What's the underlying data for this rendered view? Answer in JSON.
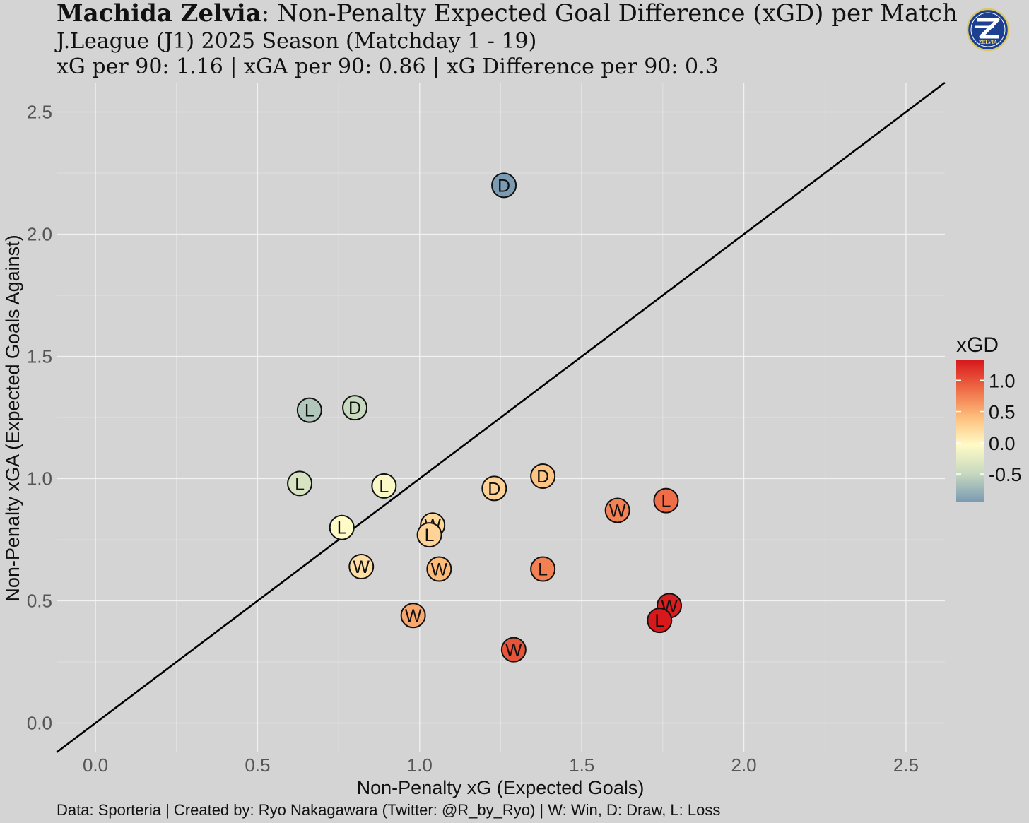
{
  "chart_data": {
    "type": "scatter",
    "title_team": "Machida Zelvia",
    "title_rest": ": Non-Penalty Expected Goal Difference (xGD) per Match",
    "subtitle": "J.League (J1) 2025 Season (Matchday 1 - 19)",
    "subtitle2": "xG per 90: 1.16 | xGA per 90: 0.86 | xG Difference per 90: 0.3",
    "xlabel": "Non-Penalty xG (Expected Goals)",
    "ylabel": "Non-Penalty xGA (Expected Goals Against)",
    "caption": "Data: Sporteria | Created by: Ryo Nakagawara (Twitter: @R_by_Ryo) | W: Win, D: Draw, L: Loss",
    "xlim": [
      -0.12,
      2.62
    ],
    "ylim": [
      -0.12,
      2.62
    ],
    "x_ticks": [
      "0.0",
      "0.5",
      "1.0",
      "1.5",
      "2.0",
      "2.5"
    ],
    "y_ticks": [
      "0.0",
      "0.5",
      "1.0",
      "1.5",
      "2.0",
      "2.5"
    ],
    "x_tick_values": [
      0,
      0.5,
      1.0,
      1.5,
      2.0,
      2.5
    ],
    "y_tick_values": [
      0,
      0.5,
      1.0,
      1.5,
      2.0,
      2.5
    ],
    "reference_line": "y = x",
    "grid": true,
    "legend": {
      "title": "xGD",
      "position": "right",
      "labels": [
        "1.0",
        "0.5",
        "0.0",
        "-0.5"
      ],
      "values": [
        1.0,
        0.5,
        0.0,
        -0.5
      ],
      "range": [
        -0.94,
        1.32
      ],
      "colors": [
        "#7b9bb3",
        "#c7d9bf",
        "#fffbc7",
        "#fdbe7b",
        "#ee6a45",
        "#d7191c"
      ]
    },
    "points": [
      {
        "x": 1.26,
        "y": 2.2,
        "result": "D"
      },
      {
        "x": 0.66,
        "y": 1.28,
        "result": "L"
      },
      {
        "x": 0.8,
        "y": 1.29,
        "result": "D"
      },
      {
        "x": 0.63,
        "y": 0.98,
        "result": "L"
      },
      {
        "x": 0.89,
        "y": 0.97,
        "result": "L"
      },
      {
        "x": 1.23,
        "y": 0.96,
        "result": "D"
      },
      {
        "x": 1.38,
        "y": 1.01,
        "result": "D"
      },
      {
        "x": 1.61,
        "y": 0.87,
        "result": "W"
      },
      {
        "x": 1.76,
        "y": 0.91,
        "result": "L"
      },
      {
        "x": 0.76,
        "y": 0.8,
        "result": "L"
      },
      {
        "x": 1.04,
        "y": 0.81,
        "result": "W"
      },
      {
        "x": 1.03,
        "y": 0.77,
        "result": "L"
      },
      {
        "x": 0.82,
        "y": 0.64,
        "result": "W"
      },
      {
        "x": 1.06,
        "y": 0.63,
        "result": "W"
      },
      {
        "x": 1.38,
        "y": 0.63,
        "result": "L"
      },
      {
        "x": 0.98,
        "y": 0.44,
        "result": "W"
      },
      {
        "x": 1.77,
        "y": 0.48,
        "result": "W"
      },
      {
        "x": 1.74,
        "y": 0.42,
        "result": "L"
      },
      {
        "x": 1.29,
        "y": 0.3,
        "result": "W"
      }
    ]
  }
}
